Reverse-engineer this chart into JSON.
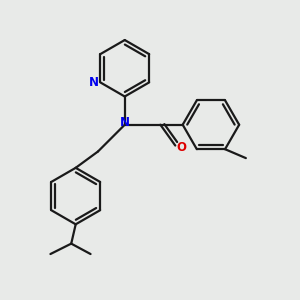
{
  "bg_color": "#e8eae8",
  "bond_color": "#1a1a1a",
  "N_color": "#0000ee",
  "O_color": "#dd0000",
  "line_width": 1.6,
  "figsize": [
    3.0,
    3.0
  ],
  "dpi": 100,
  "xlim": [
    0,
    10
  ],
  "ylim": [
    0,
    10
  ]
}
